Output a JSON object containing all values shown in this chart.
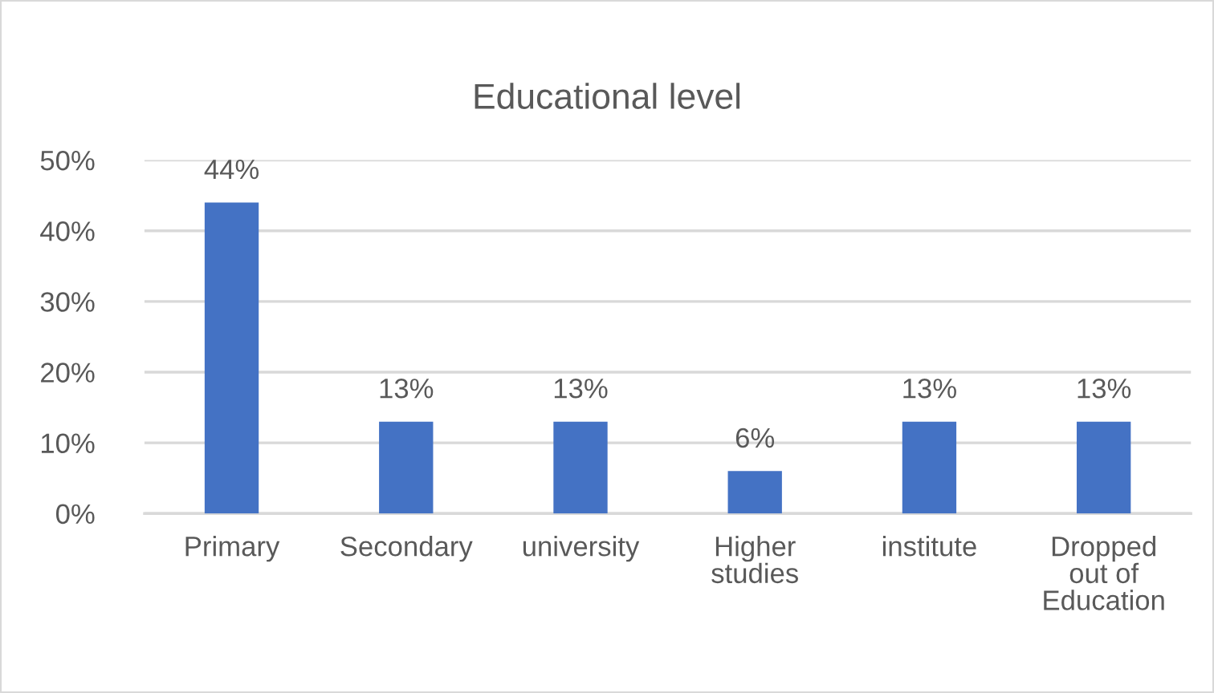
{
  "chart_data": {
    "type": "bar",
    "title": "Educational level",
    "categories": [
      "Primary",
      "Secondary",
      "university",
      "Higher studies",
      "institute",
      "Dropped out of Education"
    ],
    "values": [
      44,
      13,
      13,
      6,
      13,
      13
    ],
    "color": "#4472c4",
    "value_labels": [
      "44%",
      "13%",
      "13%",
      "6%",
      "13%",
      "13%"
    ],
    "ylim": [
      0,
      50
    ],
    "yticks": [
      {
        "value": 0,
        "label": "0%"
      },
      {
        "value": 10,
        "label": "10%"
      },
      {
        "value": 20,
        "label": "20%"
      },
      {
        "value": 30,
        "label": "30%"
      },
      {
        "value": 40,
        "label": "40%"
      },
      {
        "value": 50,
        "label": "50%"
      }
    ],
    "grid": "y",
    "legend": false
  }
}
